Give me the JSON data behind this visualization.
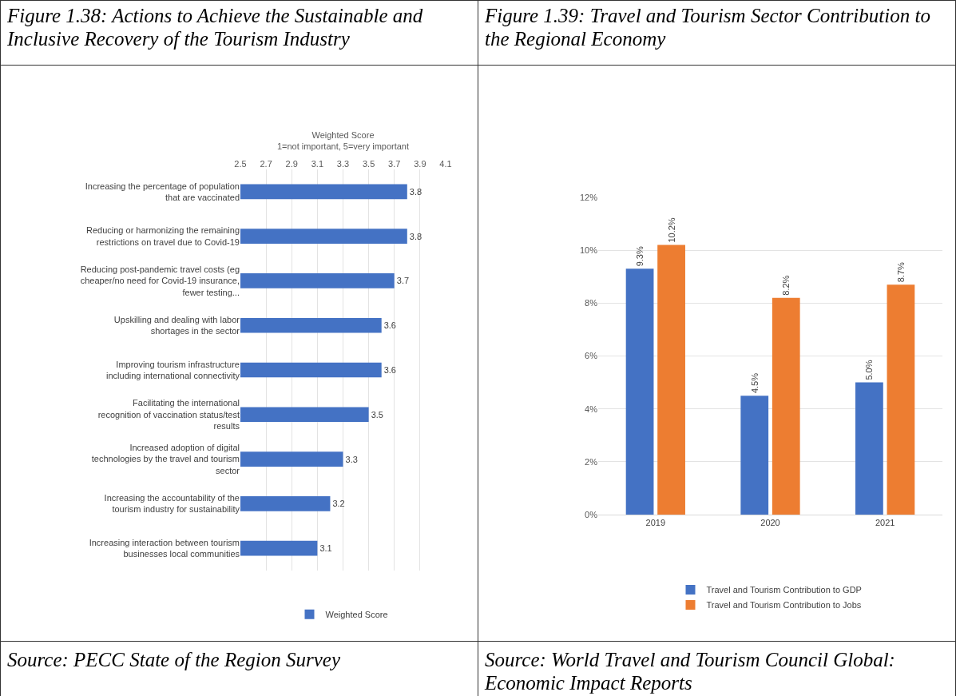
{
  "chart_data": [
    {
      "type": "bar",
      "orientation": "horizontal",
      "title": "Figure 1.38: Actions to Achieve the Sustainable and Inclusive Recovery of the Tourism Industry",
      "xlabel": "Weighted Score\n1=not important, 5=very important",
      "categories": [
        "Increasing the percentage of population that are vaccinated",
        "Reducing or harmonizing the remaining restrictions on travel due to Covid-19",
        "Reducing post-pandemic travel costs (eg cheaper/no need for Covid-19 insurance, fewer testing...",
        "Upskilling and dealing with labor shortages in the sector",
        "Improving tourism infrastructure including international connectivity",
        "Facilitating the international recognition of vaccination status/test results",
        "Increased adoption of digital technologies by the travel and tourism sector",
        "Increasing the accountability of the tourism industry for sustainability",
        "Increasing interaction between tourism businesses local communities"
      ],
      "series": [
        {
          "name": "Weighted Score",
          "color": "#4472c4",
          "values": [
            3.8,
            3.8,
            3.7,
            3.6,
            3.6,
            3.5,
            3.3,
            3.2,
            3.1
          ]
        }
      ],
      "xlim": [
        2.5,
        4.1
      ],
      "xticks": [
        2.5,
        2.7,
        2.9,
        3.1,
        3.3,
        3.5,
        3.7,
        3.9,
        4.1
      ],
      "grid": "x",
      "legend": "bottom",
      "data_labels": true,
      "annotations": [
        "Source: PECC State of the Region Survey"
      ]
    },
    {
      "type": "bar",
      "title": "Figure 1.39: Travel and Tourism Sector Contribution to the Regional Economy",
      "categories": [
        "2019",
        "2020",
        "2021"
      ],
      "series": [
        {
          "name": "Travel and Tourism Contribution to GDP",
          "color": "#4472c4",
          "values": [
            9.3,
            4.5,
            5.0
          ],
          "value_labels": [
            "9.3%",
            "4.5%",
            "5.0%"
          ]
        },
        {
          "name": "Travel and Tourism Contribution to Jobs",
          "color": "#ed7d31",
          "values": [
            10.2,
            8.2,
            8.7
          ],
          "value_labels": [
            "10.2%",
            "8.2%",
            "8.7%"
          ]
        }
      ],
      "ylim": [
        0,
        12
      ],
      "yticks": [
        {
          "value": 0,
          "label": "0%"
        },
        {
          "value": 2,
          "label": "2%"
        },
        {
          "value": 4,
          "label": "4%"
        },
        {
          "value": 6,
          "label": "6%"
        },
        {
          "value": 8,
          "label": "8%"
        },
        {
          "value": 10,
          "label": "10%"
        },
        {
          "value": 12,
          "label": "12%"
        }
      ],
      "grid": "y",
      "legend": "bottom",
      "annotations": [
        "Source: World Travel and Tourism Council Global: Economic Impact Reports"
      ]
    }
  ]
}
